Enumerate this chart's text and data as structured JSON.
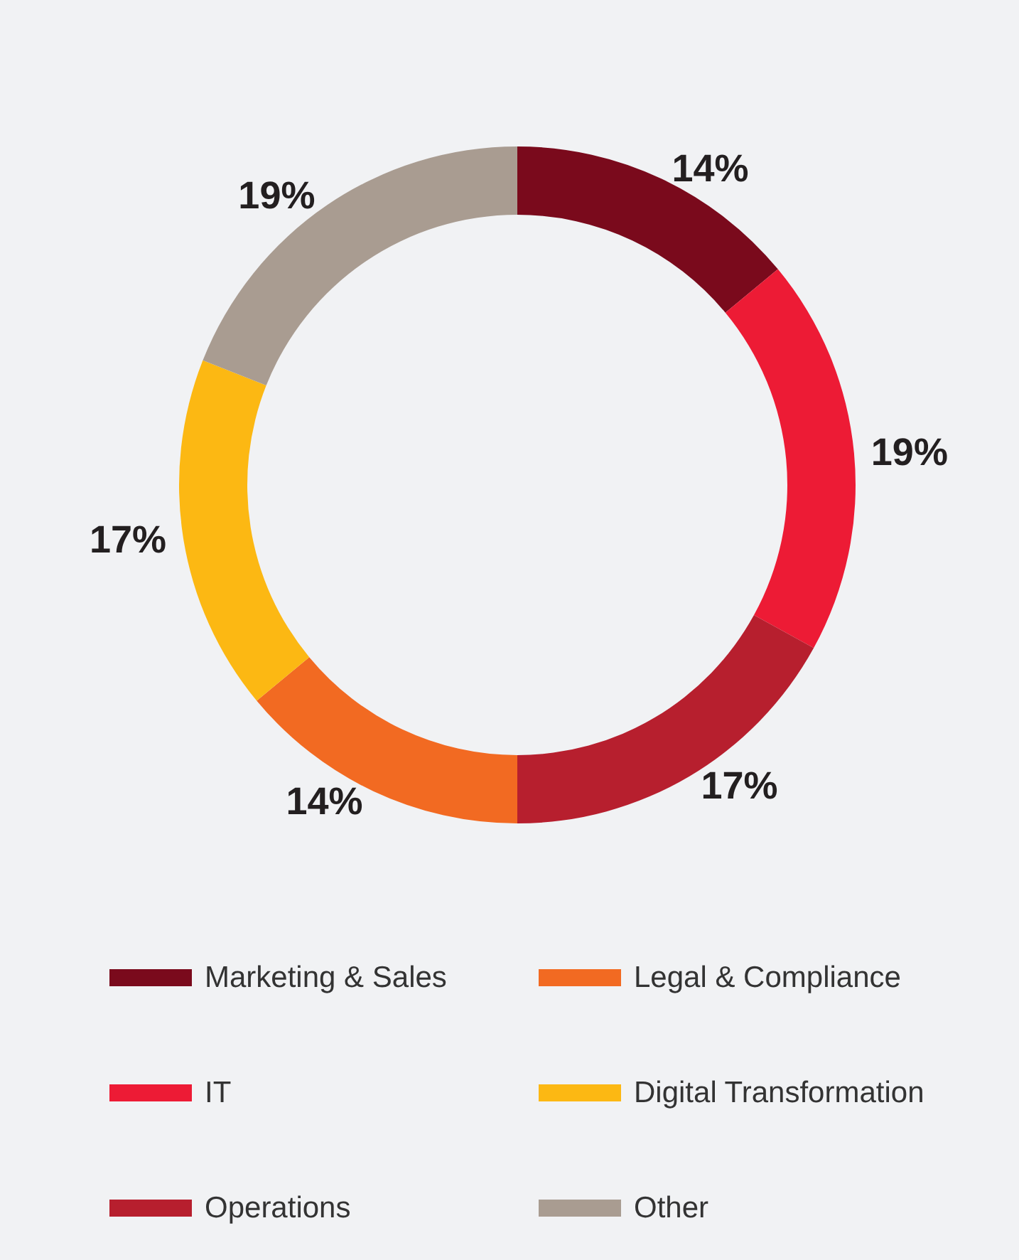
{
  "chart_data": {
    "type": "donut",
    "categories": [
      "Marketing & Sales",
      "IT",
      "Operations",
      "Legal & Compliance",
      "Digital Transformation",
      "Other"
    ],
    "values": [
      14,
      19,
      17,
      14,
      17,
      19
    ],
    "colors": [
      "#7a0a1c",
      "#ed1b35",
      "#b71f2e",
      "#f26a22",
      "#fcb813",
      "#a99c91"
    ],
    "value_labels": [
      "14%",
      "19%",
      "17%",
      "14%",
      "17%",
      "19%"
    ],
    "legend": "bottom"
  }
}
